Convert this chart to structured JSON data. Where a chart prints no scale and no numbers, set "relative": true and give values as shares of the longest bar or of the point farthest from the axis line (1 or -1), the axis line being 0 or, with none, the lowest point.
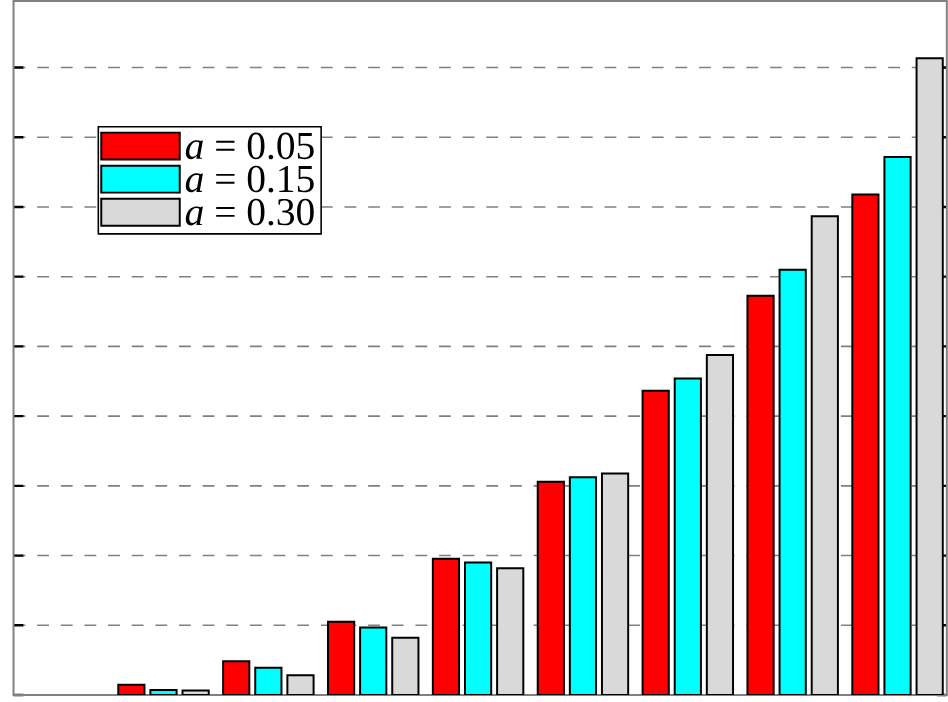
{
  "chart_data": {
    "type": "bar",
    "relative": true,
    "categories": [
      null,
      null,
      null,
      null,
      null,
      null,
      null,
      null
    ],
    "series": [
      {
        "name": "*a* = 0.05",
        "color": "#ff0000",
        "values": [
          0.016,
          0.053,
          0.115,
          0.214,
          0.335,
          0.478,
          0.627,
          0.786
        ]
      },
      {
        "name": "*a* = 0.15",
        "color": "#00ffff",
        "values": [
          0.008,
          0.043,
          0.106,
          0.208,
          0.342,
          0.497,
          0.668,
          0.845
        ]
      },
      {
        "name": "*a* = 0.30",
        "color": "#d9d9d9",
        "values": [
          0.007,
          0.031,
          0.09,
          0.199,
          0.348,
          0.534,
          0.752,
          1
        ]
      }
    ],
    "grid": "y",
    "legend": "top left"
  }
}
